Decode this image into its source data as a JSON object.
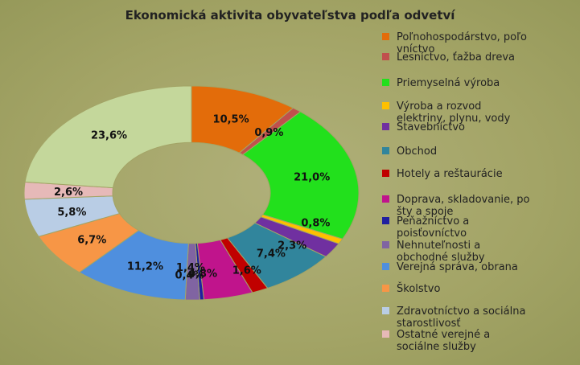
{
  "chart_data": {
    "type": "pie",
    "title": "Ekonomická aktivita obyvateľstva podľa odvetví",
    "unit": "%",
    "slices": [
      {
        "name": "Poľnohospodárstvo, poľovníctvo",
        "legend_lines": [
          "Poľnohospodárstvo, poľo",
          "vníctvo"
        ],
        "value": 10.5,
        "label": "10,5%",
        "color": "#e36c0a"
      },
      {
        "name": "Lesníctvo, ťažba dreva",
        "legend_lines": [
          "Lesníctvo, ťažba dreva"
        ],
        "value": 0.9,
        "label": "0,9%",
        "color": "#c0504d"
      },
      {
        "name": "Priemyselná výroba",
        "legend_lines": [
          "Priemyselná výroba"
        ],
        "value": 21.0,
        "label": "21,0%",
        "color": "#22e01c"
      },
      {
        "name": "Výroba a rozvod elektriny, plynu, vody",
        "legend_lines": [
          "Výroba a rozvod",
          "elektriny, plynu, vody"
        ],
        "value": 0.8,
        "label": "0,8%",
        "color": "#ffc000"
      },
      {
        "name": "Stavebníctvo",
        "legend_lines": [
          "Stavebníctvo"
        ],
        "value": 2.3,
        "label": "2,3%",
        "color": "#7030a0"
      },
      {
        "name": "Obchod",
        "legend_lines": [
          "Obchod"
        ],
        "value": 7.4,
        "label": "7,4%",
        "color": "#31859c"
      },
      {
        "name": "Hotely a reštaurácie",
        "legend_lines": [
          "Hotely a reštaurácie"
        ],
        "value": 1.6,
        "label": "1,6%",
        "color": "#c00000"
      },
      {
        "name": "Doprava, skladovanie, pošty a spoje",
        "legend_lines": [
          "Doprava, skladovanie, po",
          "šty a spoje"
        ],
        "value": 4.8,
        "label": "4,8%",
        "color": "#c0148c"
      },
      {
        "name": "Peňažníctvo a poisťovníctvo",
        "legend_lines": [
          "Peňažníctvo a",
          "poisťovníctvo"
        ],
        "value": 0.4,
        "label": "0,4%",
        "color": "#2020a0"
      },
      {
        "name": "Nehnuteľnosti a obchodné služby",
        "legend_lines": [
          "Nehnuteľnosti a",
          "obchodné služby"
        ],
        "value": 1.4,
        "label": "1,4%",
        "color": "#8064a2"
      },
      {
        "name": "Verejná správa, obrana",
        "legend_lines": [
          "Verejná správa, obrana"
        ],
        "value": 11.2,
        "label": "11,2%",
        "color": "#4f8fde"
      },
      {
        "name": "Školstvo",
        "legend_lines": [
          "Školstvo"
        ],
        "value": 6.7,
        "label": "6,7%",
        "color": "#f79646"
      },
      {
        "name": "Zdravotníctvo a sociálna starostlivosť",
        "legend_lines": [
          "Zdravotníctvo a sociálna",
          "starostlivosť"
        ],
        "value": 5.8,
        "label": "5,8%",
        "color": "#b9cde5"
      },
      {
        "name": "Ostatné verejné a sociálne služby",
        "legend_lines": [
          "Ostatné verejné a",
          "sociálne služby"
        ],
        "value": 2.6,
        "label": "2,6%",
        "color": "#e6b9b8"
      },
      {
        "name": "",
        "legend_lines": [],
        "value": 23.6,
        "label": "23,6%",
        "color": "#c4d79b"
      }
    ],
    "donut": true,
    "legend_position": "right"
  }
}
